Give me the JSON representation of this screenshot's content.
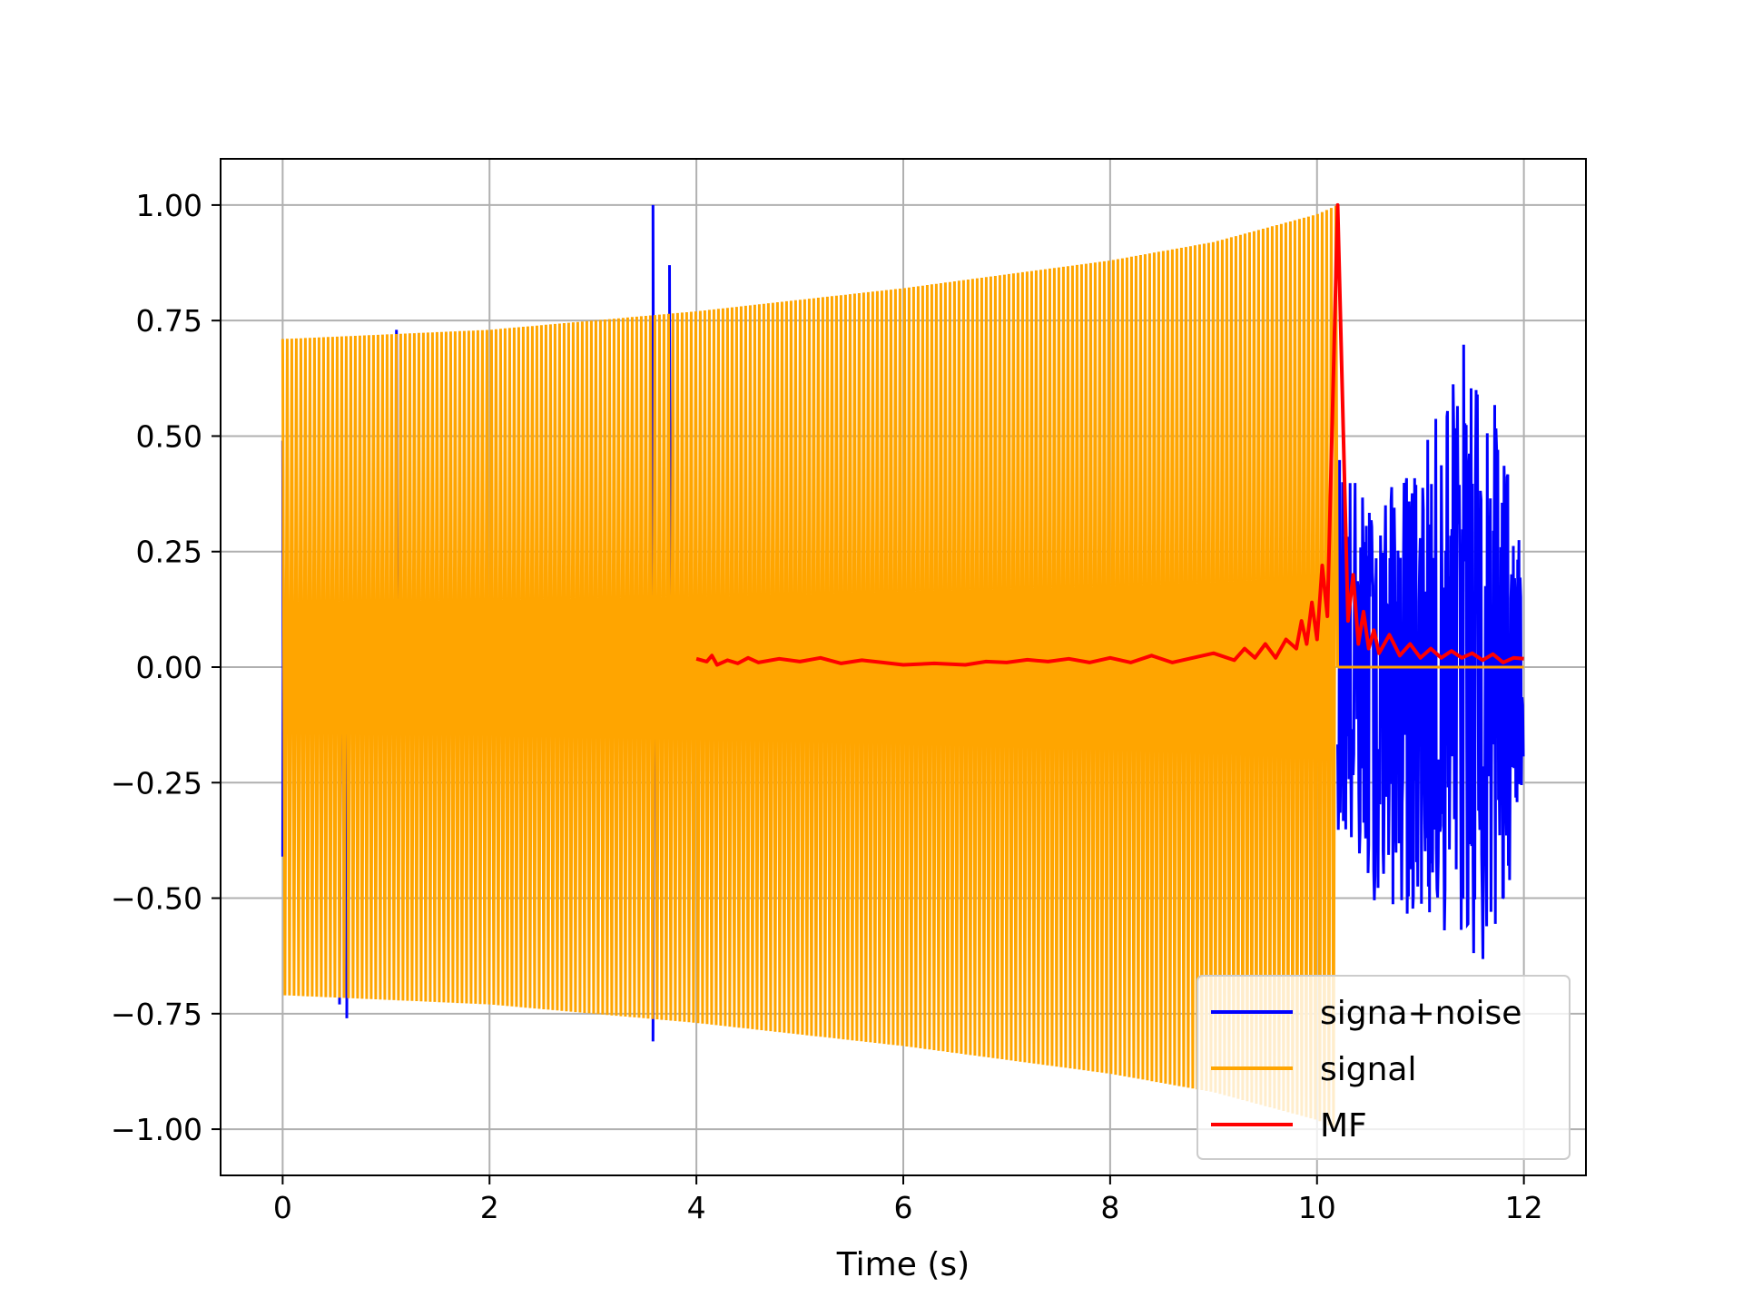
{
  "chart_data": {
    "type": "line",
    "title": "",
    "xlabel": "Time (s)",
    "ylabel": "",
    "xlim": [
      -0.6,
      12.6
    ],
    "ylim": [
      -1.1,
      1.1
    ],
    "xticks": [
      0,
      2,
      4,
      6,
      8,
      10,
      12
    ],
    "xtick_labels": [
      "0",
      "2",
      "4",
      "6",
      "8",
      "10",
      "12"
    ],
    "yticks": [
      1.0,
      0.75,
      0.5,
      0.25,
      0.0,
      -0.25,
      -0.5,
      -0.75,
      -1.0
    ],
    "ytick_labels": [
      "1.00",
      "0.75",
      "0.50",
      "0.25",
      "0.00",
      "−0.25",
      "−0.50",
      "−0.75",
      "−1.00"
    ],
    "grid": true,
    "legend_position": "lower-right",
    "series": [
      {
        "name": "signa+noise",
        "color": "#0000ff",
        "description_points": {
          "spikes": [
            {
              "x": 0.0,
              "y": 0.49
            },
            {
              "x": 0.0,
              "y": -0.41
            },
            {
              "x": 0.55,
              "y": -0.73
            },
            {
              "x": 0.62,
              "y": -0.76
            },
            {
              "x": 1.1,
              "y": 0.73
            },
            {
              "x": 3.58,
              "y": 1.0
            },
            {
              "x": 3.58,
              "y": -0.81
            },
            {
              "x": 3.74,
              "y": 0.87
            }
          ],
          "noise_region": {
            "x_start": 10.2,
            "x_end": 12.0,
            "upper": [
              [
                10.2,
                0.5
              ],
              [
                10.5,
                0.35
              ],
              [
                11.0,
                0.45
              ],
              [
                11.42,
                0.72
              ],
              [
                11.6,
                0.66
              ],
              [
                11.8,
                0.52
              ],
              [
                12.0,
                0.2
              ]
            ],
            "lower": [
              [
                10.2,
                -0.35
              ],
              [
                10.5,
                -0.5
              ],
              [
                11.0,
                -0.55
              ],
              [
                11.42,
                -0.6
              ],
              [
                11.6,
                -0.67
              ],
              [
                11.8,
                -0.57
              ],
              [
                12.0,
                -0.22
              ]
            ]
          }
        }
      },
      {
        "name": "signal",
        "color": "#ffa500",
        "envelope": [
          [
            0.0,
            0.71
          ],
          [
            2.0,
            0.73
          ],
          [
            4.0,
            0.77
          ],
          [
            6.0,
            0.82
          ],
          [
            8.0,
            0.88
          ],
          [
            9.0,
            0.92
          ],
          [
            10.0,
            0.98
          ],
          [
            10.2,
            1.0
          ]
        ],
        "x_end_of_chirp": 10.2,
        "zero_after": [
          10.2,
          12.0
        ]
      },
      {
        "name": "MF",
        "color": "#ff0000",
        "points": [
          [
            4.0,
            0.018
          ],
          [
            4.1,
            0.012
          ],
          [
            4.15,
            0.025
          ],
          [
            4.2,
            0.005
          ],
          [
            4.3,
            0.015
          ],
          [
            4.4,
            0.008
          ],
          [
            4.5,
            0.02
          ],
          [
            4.6,
            0.01
          ],
          [
            4.8,
            0.018
          ],
          [
            5.0,
            0.012
          ],
          [
            5.2,
            0.02
          ],
          [
            5.4,
            0.008
          ],
          [
            5.6,
            0.015
          ],
          [
            5.8,
            0.01
          ],
          [
            6.0,
            0.005
          ],
          [
            6.3,
            0.008
          ],
          [
            6.6,
            0.005
          ],
          [
            6.8,
            0.012
          ],
          [
            7.0,
            0.01
          ],
          [
            7.2,
            0.016
          ],
          [
            7.4,
            0.012
          ],
          [
            7.6,
            0.018
          ],
          [
            7.8,
            0.01
          ],
          [
            8.0,
            0.02
          ],
          [
            8.2,
            0.01
          ],
          [
            8.4,
            0.025
          ],
          [
            8.6,
            0.01
          ],
          [
            8.8,
            0.02
          ],
          [
            9.0,
            0.03
          ],
          [
            9.2,
            0.015
          ],
          [
            9.3,
            0.04
          ],
          [
            9.4,
            0.02
          ],
          [
            9.5,
            0.05
          ],
          [
            9.6,
            0.02
          ],
          [
            9.7,
            0.06
          ],
          [
            9.8,
            0.04
          ],
          [
            9.85,
            0.1
          ],
          [
            9.9,
            0.05
          ],
          [
            9.95,
            0.14
          ],
          [
            10.0,
            0.06
          ],
          [
            10.05,
            0.22
          ],
          [
            10.1,
            0.11
          ],
          [
            10.2,
            1.0
          ],
          [
            10.3,
            0.1
          ],
          [
            10.35,
            0.2
          ],
          [
            10.4,
            0.05
          ],
          [
            10.45,
            0.12
          ],
          [
            10.5,
            0.04
          ],
          [
            10.55,
            0.08
          ],
          [
            10.6,
            0.03
          ],
          [
            10.7,
            0.07
          ],
          [
            10.8,
            0.025
          ],
          [
            10.9,
            0.05
          ],
          [
            11.0,
            0.02
          ],
          [
            11.1,
            0.04
          ],
          [
            11.2,
            0.02
          ],
          [
            11.3,
            0.035
          ],
          [
            11.4,
            0.02
          ],
          [
            11.5,
            0.03
          ],
          [
            11.6,
            0.015
          ],
          [
            11.7,
            0.028
          ],
          [
            11.8,
            0.01
          ],
          [
            11.9,
            0.02
          ],
          [
            12.0,
            0.018
          ]
        ]
      }
    ]
  }
}
